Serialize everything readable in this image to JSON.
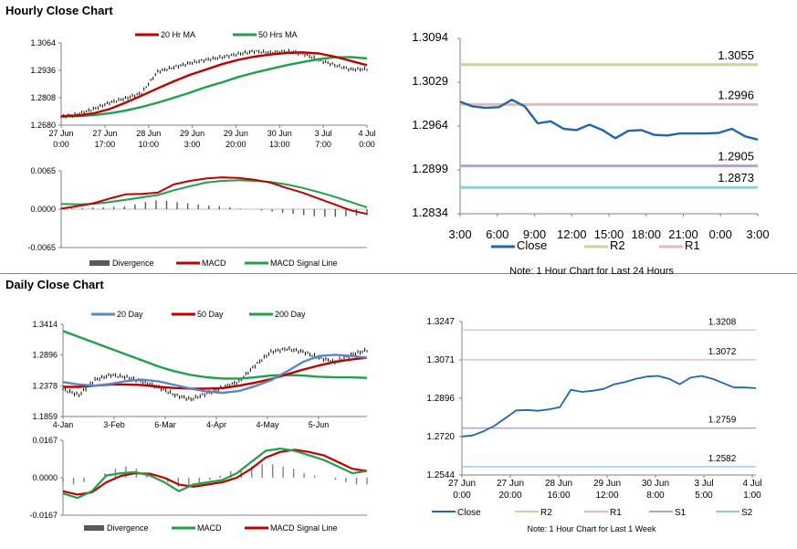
{
  "sections": {
    "hourly_title": "Hourly Close Chart",
    "daily_title": "Daily Close Chart"
  },
  "colors": {
    "close_blue": "#2166a8",
    "ma_red": "#c00000",
    "ma_green": "#1fa04a",
    "slate_blue": "#5b86c5",
    "r2": "#c3d69b",
    "r1": "#e6b9b8",
    "s1": "#b3a2c7",
    "s2": "#93cddd",
    "divergence": "#595959"
  },
  "chart_data": [
    {
      "id": "hourly-price",
      "type": "line",
      "x_tick_labels": [
        [
          "27 Jun",
          "0:00"
        ],
        [
          "27 Jun",
          "17:00"
        ],
        [
          "28 Jun",
          "10:00"
        ],
        [
          "29 Jun",
          "3:00"
        ],
        [
          "29 Jun",
          "20:00"
        ],
        [
          "30 Jun",
          "13:00"
        ],
        [
          "3 Jul",
          "7:00"
        ],
        [
          "4 Jul",
          "0:00"
        ]
      ],
      "y_ticks": [
        "1.3064",
        "1.2936",
        "1.2808",
        "1.2680"
      ],
      "ylim": [
        1.268,
        1.3064
      ],
      "series": [
        {
          "name": "20 Hr MA",
          "color": "#c00000",
          "values": [
            1.2722,
            1.2725,
            1.2735,
            1.2755,
            1.2785,
            1.2818,
            1.2852,
            1.2885,
            1.2915,
            1.294,
            1.2965,
            1.2985,
            1.3,
            1.301,
            1.3017,
            1.302,
            1.3015,
            1.3,
            1.298,
            1.296
          ]
        },
        {
          "name": "50 Hrs MA",
          "color": "#1fa04a",
          "values": [
            1.272,
            1.2722,
            1.2727,
            1.2735,
            1.2748,
            1.2765,
            1.2785,
            1.2808,
            1.2832,
            1.2858,
            1.288,
            1.2905,
            1.2925,
            1.2943,
            1.296,
            1.2975,
            1.2988,
            1.2997,
            1.2998,
            1.2992
          ]
        },
        {
          "name": "Close",
          "color": "#000000",
          "values": [
            1.2718,
            1.273,
            1.2755,
            1.2785,
            1.2805,
            1.283,
            1.293,
            1.295,
            1.297,
            1.2985,
            1.2998,
            1.3012,
            1.3025,
            1.3018,
            1.3025,
            1.3015,
            1.2985,
            1.296,
            1.294,
            1.2942
          ]
        }
      ],
      "legend": [
        "20 Hr MA",
        "50 Hrs MA"
      ]
    },
    {
      "id": "hourly-macd",
      "type": "line",
      "y_ticks": [
        "0.0065",
        "0.0000",
        "-0.0065"
      ],
      "ylim": [
        -0.0065,
        0.0065
      ],
      "divergence": [
        0.0001,
        0.0002,
        0.0002,
        0.0003,
        0.0003,
        0.0004,
        0.0005,
        0.0008,
        0.0012,
        0.0015,
        0.0014,
        0.0012,
        0.001,
        0.0008,
        0.0006,
        0.0005,
        0.0003,
        0.0001,
        0.0,
        -0.0002,
        -0.0004,
        -0.0006,
        -0.0008,
        -0.001,
        -0.0012,
        -0.0013,
        -0.0013,
        -0.0012,
        -0.0011,
        -0.001
      ],
      "series": [
        {
          "name": "MACD",
          "color": "#c00000",
          "values": [
            0.0001,
            0.0005,
            0.001,
            0.0018,
            0.0025,
            0.0026,
            0.0028,
            0.0042,
            0.0048,
            0.0052,
            0.0054,
            0.0053,
            0.005,
            0.0045,
            0.0036,
            0.0028,
            0.0018,
            0.0008,
            -0.0002,
            -0.0008
          ]
        },
        {
          "name": "MACD Signal Line",
          "color": "#1fa04a",
          "values": [
            0.0009,
            0.0008,
            0.0009,
            0.0012,
            0.0016,
            0.002,
            0.0024,
            0.0032,
            0.0039,
            0.0045,
            0.0048,
            0.0049,
            0.0048,
            0.0046,
            0.0042,
            0.0036,
            0.0029,
            0.0021,
            0.0012,
            0.0003
          ]
        }
      ],
      "legend": [
        "Divergence",
        "MACD",
        "MACD Signal Line"
      ]
    },
    {
      "id": "hourly-levels",
      "type": "line",
      "x_tick_labels": [
        "3:00",
        "6:00",
        "9:00",
        "12:00",
        "15:00",
        "18:00",
        "21:00",
        "0:00",
        "3:00"
      ],
      "y_ticks": [
        "1.3094",
        "1.3029",
        "1.2964",
        "1.2899",
        "1.2834"
      ],
      "ylim": [
        1.2834,
        1.3094
      ],
      "series": [
        {
          "name": "Close",
          "color": "#2166a8",
          "values": [
            1.3,
            1.2993,
            1.2991,
            1.2992,
            1.3003,
            1.2993,
            1.2968,
            1.2971,
            1.296,
            1.2958,
            1.2966,
            1.2958,
            1.2946,
            1.2957,
            1.2958,
            1.2951,
            1.295,
            1.2953,
            1.2953,
            1.2953,
            1.2954,
            1.296,
            1.2949,
            1.2944
          ]
        },
        {
          "name": "R2",
          "color": "#c3d69b",
          "values": [
            1.3055
          ],
          "label": "1.3055"
        },
        {
          "name": "R1",
          "color": "#e6b9b8",
          "values": [
            1.2996
          ],
          "label": "1.2996"
        },
        {
          "name": "",
          "color": "#b3a2c7",
          "values": [
            1.2905
          ],
          "label": "1.2905"
        },
        {
          "name": "",
          "color": "#93cddd",
          "values": [
            1.2873
          ],
          "label": "1.2873"
        }
      ],
      "legend": [
        "Close",
        "R2",
        "R1"
      ],
      "note": "Note: 1 Hour Chart for Last 24 Hours"
    },
    {
      "id": "daily-price",
      "type": "line",
      "x_tick_labels": [
        "4-Jan",
        "3-Feb",
        "6-Mar",
        "4-Apr",
        "4-May",
        "5-Jun"
      ],
      "y_ticks": [
        "1.3414",
        "1.2896",
        "1.2378",
        "1.1859"
      ],
      "ylim": [
        1.1859,
        1.3414
      ],
      "series": [
        {
          "name": "20 Day",
          "color": "#5b86c5",
          "values": [
            1.244,
            1.24,
            1.238,
            1.241,
            1.246,
            1.248,
            1.245,
            1.239,
            1.233,
            1.228,
            1.226,
            1.229,
            1.237,
            1.247,
            1.262,
            1.278,
            1.288,
            1.29,
            1.288,
            1.285
          ]
        },
        {
          "name": "50 Day",
          "color": "#c00000",
          "values": [
            1.236,
            1.236,
            1.238,
            1.24,
            1.24,
            1.239,
            1.236,
            1.234,
            1.233,
            1.233,
            1.234,
            1.238,
            1.243,
            1.249,
            1.257,
            1.265,
            1.272,
            1.278,
            1.282,
            1.285
          ]
        },
        {
          "name": "200 Day",
          "color": "#1fa04a",
          "values": [
            1.33,
            1.32,
            1.31,
            1.3,
            1.29,
            1.28,
            1.27,
            1.262,
            1.256,
            1.252,
            1.25,
            1.25,
            1.252,
            1.255,
            1.256,
            1.255,
            1.253,
            1.252,
            1.252,
            1.251
          ]
        },
        {
          "name": "Close",
          "color": "#000000",
          "values": [
            1.232,
            1.222,
            1.248,
            1.256,
            1.252,
            1.245,
            1.235,
            1.222,
            1.215,
            1.225,
            1.235,
            1.245,
            1.272,
            1.295,
            1.3,
            1.295,
            1.285,
            1.278,
            1.29,
            1.298
          ]
        }
      ],
      "legend": [
        "20 Day",
        "50 Day",
        "200 Day"
      ]
    },
    {
      "id": "daily-macd",
      "type": "line",
      "y_ticks": [
        "0.0167",
        "0.0000",
        "-0.0167"
      ],
      "ylim": [
        -0.0167,
        0.0167
      ],
      "divergence": [
        -0.002,
        -0.003,
        -0.002,
        0.0,
        0.002,
        0.004,
        0.005,
        0.004,
        0.002,
        0.0,
        -0.002,
        -0.004,
        -0.004,
        -0.003,
        -0.001,
        0.001,
        0.003,
        0.004,
        0.005,
        0.006,
        0.006,
        0.005,
        0.004,
        0.002,
        0.001,
        0.0,
        -0.001,
        -0.002,
        -0.003,
        -0.003
      ],
      "series": [
        {
          "name": "MACD",
          "color": "#1fa04a",
          "values": [
            -0.007,
            -0.009,
            -0.006,
            0.001,
            0.002,
            0.0025,
            0.001,
            -0.002,
            -0.006,
            -0.003,
            -0.002,
            -0.001,
            0.002,
            0.007,
            0.012,
            0.013,
            0.012,
            0.01,
            0.008,
            0.005,
            0.002,
            0.003
          ]
        },
        {
          "name": "MACD Signal Line",
          "color": "#c00000",
          "values": [
            -0.006,
            -0.0075,
            -0.0065,
            -0.002,
            0.0008,
            0.002,
            0.0018,
            0.0,
            -0.003,
            -0.004,
            -0.003,
            -0.002,
            0.0,
            0.004,
            0.009,
            0.0115,
            0.0125,
            0.0115,
            0.01,
            0.007,
            0.004,
            0.003
          ]
        }
      ],
      "legend": [
        "Divergence",
        "MACD",
        "MACD Signal Line"
      ]
    },
    {
      "id": "daily-levels",
      "type": "line",
      "x_tick_labels": [
        [
          "27 Jun",
          "0:00"
        ],
        [
          "27 Jun",
          "20:00"
        ],
        [
          "28 Jun",
          "16:00"
        ],
        [
          "29 Jun",
          "12:00"
        ],
        [
          "30 Jun",
          "8:00"
        ],
        [
          "3 Jul",
          "5:00"
        ],
        [
          "4 Jul",
          "1:00"
        ]
      ],
      "y_ticks": [
        "1.3247",
        "1.3071",
        "1.2896",
        "1.2720",
        "1.2544"
      ],
      "ylim": [
        1.2544,
        1.3247
      ],
      "series": [
        {
          "name": "Close",
          "color": "#2166a8",
          "values": [
            1.272,
            1.2725,
            1.2745,
            1.277,
            1.2805,
            1.284,
            1.2842,
            1.2838,
            1.2845,
            1.2855,
            1.2935,
            1.2925,
            1.293,
            1.2938,
            1.296,
            1.297,
            1.2985,
            1.2995,
            1.2998,
            1.2985,
            1.296,
            1.299,
            1.2998,
            1.2985,
            1.2965,
            1.2945,
            1.2945,
            1.2942
          ]
        },
        {
          "name": "R2",
          "color": "#c3d69b",
          "values": [
            1.3208
          ],
          "label": "1.3208"
        },
        {
          "name": "R1",
          "color": "#e6b9b8",
          "values": [
            1.3072
          ],
          "label": "1.3072"
        },
        {
          "name": "S1",
          "color": "#b3a2c7",
          "values": [
            1.2759
          ],
          "label": "1.2759"
        },
        {
          "name": "S2",
          "color": "#93cddd",
          "values": [
            1.2582
          ],
          "label": "1.2582"
        }
      ],
      "legend": [
        "Close",
        "R2",
        "R1",
        "S1",
        "S2"
      ],
      "note": "Note: 1 Hour Chart for Last 1 Week"
    }
  ]
}
